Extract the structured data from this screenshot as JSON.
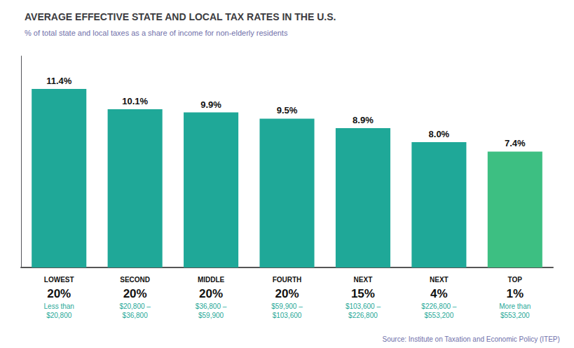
{
  "chart_data": {
    "type": "bar",
    "title": "AVERAGE EFFECTIVE STATE AND LOCAL TAX RATES IN THE U.S.",
    "subtitle": "% of total state and local taxes as a share of income for non-elderly residents",
    "annotations": [
      "Source: Institute on Taxation and Economic Policy (ITEP)"
    ],
    "categories": [
      "LOWEST\n20%\nLess than\n$20,800",
      "SECOND\n20%\n$20,800 –\n$36,800",
      "MIDDLE\n20%\n$36,800 –\n$59,900",
      "FOURTH\n20%\n$59,900 –\n$103,600",
      "NEXT\n15%\n$103,600 –\n$226,800",
      "NEXT\n4%\n$226,800 –\n$553,200",
      "TOP\n1%\nMore than\n$553,200"
    ],
    "values": [
      11.4,
      10.1,
      9.9,
      9.5,
      8.9,
      8.0,
      7.4
    ],
    "value_labels": [
      "11.4%",
      "10.1%",
      "9.9%",
      "9.5%",
      "8.9%",
      "8.0%",
      "7.4%"
    ],
    "colors": [
      "#1fa898",
      "#1fa898",
      "#1fa898",
      "#1fa898",
      "#1fa898",
      "#1fa898",
      "#3dbf82"
    ],
    "ylim": [
      0,
      13.5
    ],
    "data_labels": true,
    "tick_labels": "x",
    "grid": false
  }
}
